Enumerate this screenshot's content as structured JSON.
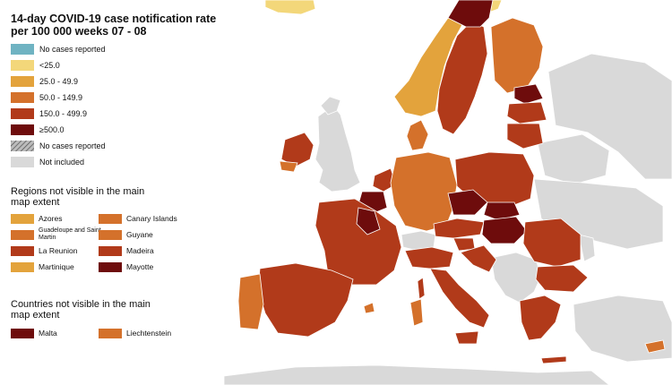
{
  "title": "14-day COVID-19 case notification rate per 100 000 weeks  07 - 08",
  "legend": [
    {
      "label": "No cases reported",
      "color": "#6fb3c2"
    },
    {
      "label": "<25.0",
      "color": "#f3d77a"
    },
    {
      "label": "25.0 - 49.9",
      "color": "#e3a33c"
    },
    {
      "label": "50.0 - 149.9",
      "color": "#d4712b"
    },
    {
      "label": "150.0 - 499.9",
      "color": "#b13a1a"
    },
    {
      "label": "≥500.0",
      "color": "#6e0c0c"
    },
    {
      "label": "No cases reported",
      "color": "hatched"
    },
    {
      "label": "Not included",
      "color": "#d9d9d9"
    }
  ],
  "regions_heading": "Regions not visible in the main map extent",
  "regions": [
    {
      "label": "Azores",
      "color": "#e3a33c"
    },
    {
      "label": "Canary Islands",
      "color": "#d4712b"
    },
    {
      "label": "Guadeloupe and Saint Martin",
      "color": "#d4712b"
    },
    {
      "label": "Guyane",
      "color": "#d4712b"
    },
    {
      "label": "La Reunion",
      "color": "#b13a1a"
    },
    {
      "label": "Madeira",
      "color": "#b13a1a"
    },
    {
      "label": "Martinique",
      "color": "#e3a33c"
    },
    {
      "label": "Mayotte",
      "color": "#6e0c0c"
    }
  ],
  "countries_heading": "Countries not visible in the main map extent",
  "countries": [
    {
      "label": "Malta",
      "color": "#6e0c0c"
    },
    {
      "label": "Liechtenstein",
      "color": "#d4712b"
    }
  ],
  "colors": {
    "sea": "#ffffff",
    "not_included": "#d9d9d9",
    "border": "#ffffff"
  }
}
